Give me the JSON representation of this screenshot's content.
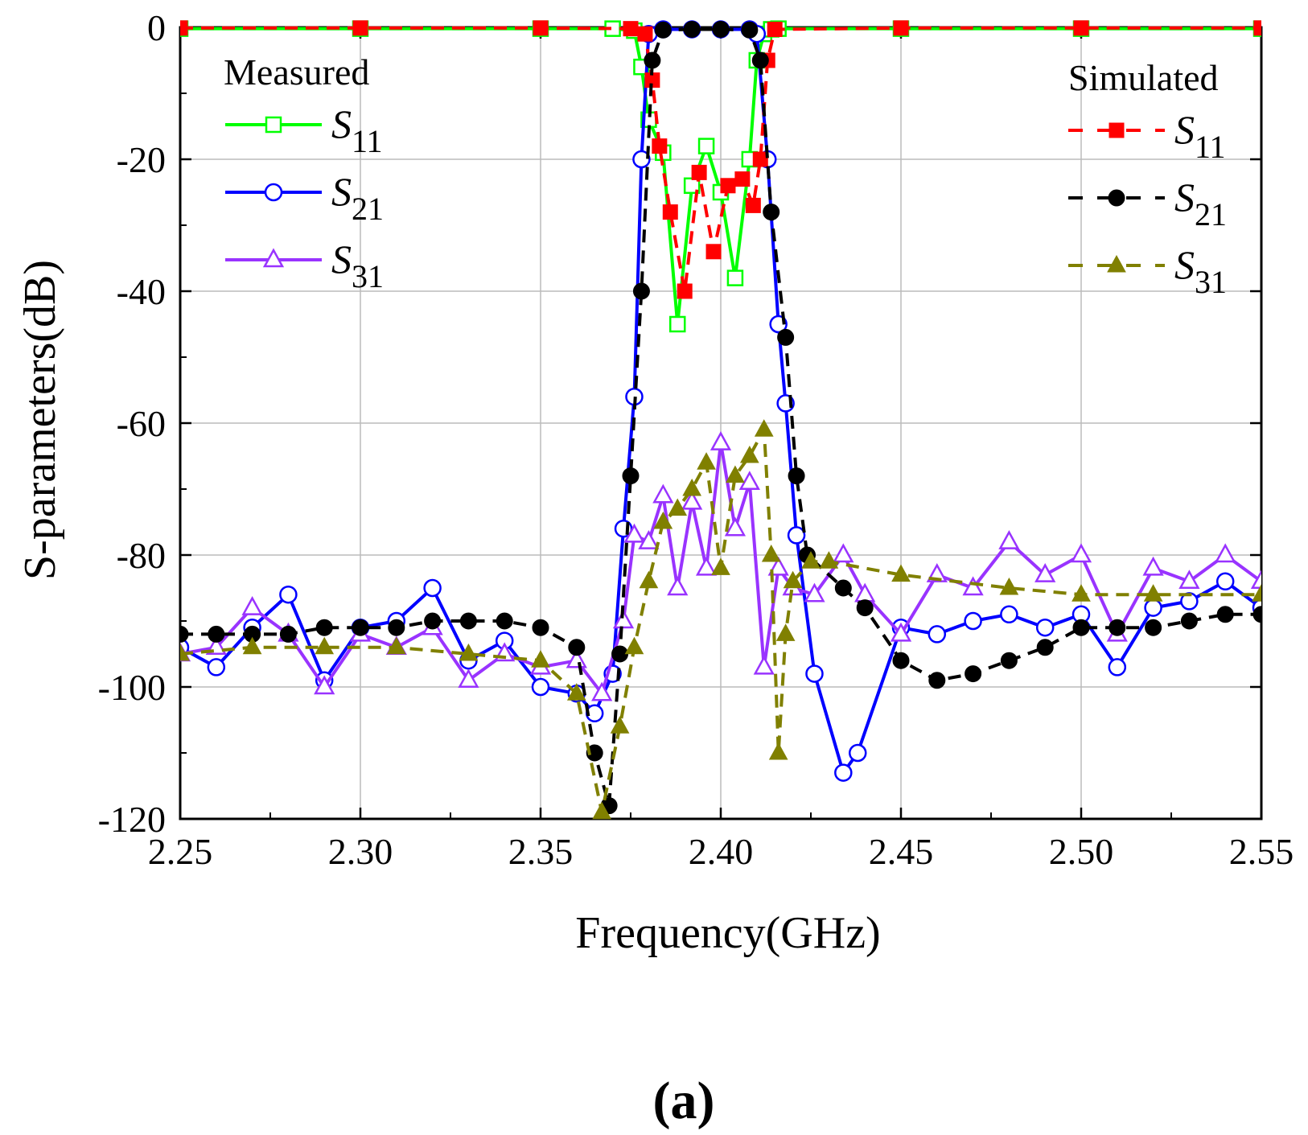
{
  "panel_label": "(a)",
  "chart_data": {
    "type": "line",
    "xlabel": "Frequency(GHz)",
    "ylabel": "S-parameters(dB)",
    "xlim": [
      2.25,
      2.55
    ],
    "ylim": [
      -120,
      0
    ],
    "x_ticks": [
      "2.25",
      "2.30",
      "2.35",
      "2.40",
      "2.45",
      "2.50",
      "2.55"
    ],
    "y_ticks": [
      "0",
      "-20",
      "-40",
      "-60",
      "-80",
      "-100",
      "-120"
    ],
    "grid": true,
    "legend_groups": [
      {
        "title": "Measured",
        "placement": "top-left"
      },
      {
        "title": "Simulated",
        "placement": "top-right"
      }
    ],
    "series": [
      {
        "name": "S11",
        "sub": "11",
        "group": "Measured",
        "color": "#00ff00",
        "dash": "solid",
        "marker": "square-open",
        "x": [
          2.25,
          2.3,
          2.35,
          2.37,
          2.376,
          2.378,
          2.38,
          2.384,
          2.388,
          2.392,
          2.396,
          2.4,
          2.404,
          2.408,
          2.41,
          2.412,
          2.414,
          2.416,
          2.45,
          2.5,
          2.55
        ],
        "y": [
          -0.2,
          -0.2,
          -0.2,
          -0.2,
          -0.5,
          -6,
          -14,
          -19,
          -45,
          -24,
          -18,
          -25,
          -38,
          -20,
          -5,
          -1,
          -0.3,
          -0.2,
          -0.2,
          -0.2,
          -0.2
        ]
      },
      {
        "name": "S21",
        "sub": "21",
        "group": "Measured",
        "color": "#0000ff",
        "dash": "solid",
        "marker": "circle-open",
        "x": [
          2.25,
          2.26,
          2.27,
          2.28,
          2.29,
          2.3,
          2.31,
          2.32,
          2.33,
          2.34,
          2.35,
          2.36,
          2.365,
          2.37,
          2.373,
          2.376,
          2.378,
          2.38,
          2.384,
          2.392,
          2.4,
          2.408,
          2.41,
          2.413,
          2.416,
          2.418,
          2.421,
          2.426,
          2.434,
          2.438,
          2.45,
          2.46,
          2.47,
          2.48,
          2.49,
          2.5,
          2.51,
          2.52,
          2.53,
          2.54,
          2.55
        ],
        "y": [
          -94,
          -97,
          -91,
          -86,
          -99,
          -91,
          -90,
          -85,
          -96,
          -93,
          -100,
          -101,
          -104,
          -98,
          -76,
          -56,
          -20,
          -1,
          -0.3,
          -0.3,
          -0.3,
          -0.3,
          -1,
          -20,
          -45,
          -57,
          -77,
          -98,
          -113,
          -110,
          -91,
          -92,
          -90,
          -89,
          -91,
          -89,
          -97,
          -88,
          -87,
          -84,
          -88
        ]
      },
      {
        "name": "S31",
        "sub": "31",
        "group": "Measured",
        "color": "#9933ff",
        "dash": "solid",
        "marker": "triangle-open",
        "x": [
          2.25,
          2.26,
          2.27,
          2.28,
          2.29,
          2.3,
          2.31,
          2.32,
          2.33,
          2.34,
          2.35,
          2.36,
          2.367,
          2.373,
          2.376,
          2.38,
          2.384,
          2.388,
          2.392,
          2.396,
          2.4,
          2.404,
          2.408,
          2.412,
          2.416,
          2.42,
          2.426,
          2.434,
          2.44,
          2.45,
          2.46,
          2.47,
          2.48,
          2.49,
          2.5,
          2.51,
          2.52,
          2.53,
          2.54,
          2.55
        ],
        "y": [
          -95,
          -94,
          -88,
          -92,
          -100,
          -92,
          -94,
          -91,
          -99,
          -95,
          -97,
          -96,
          -101,
          -90,
          -77,
          -78,
          -71,
          -85,
          -72,
          -82,
          -63,
          -76,
          -69,
          -97,
          -82,
          -85,
          -86,
          -80,
          -86,
          -92,
          -83,
          -85,
          -78,
          -83,
          -80,
          -92,
          -82,
          -84,
          -80,
          -84
        ]
      },
      {
        "name": "S11",
        "sub": "11",
        "group": "Simulated",
        "color": "#ff0000",
        "dash": "dashed",
        "marker": "square-filled",
        "x": [
          2.25,
          2.3,
          2.35,
          2.375,
          2.379,
          2.381,
          2.383,
          2.386,
          2.39,
          2.394,
          2.398,
          2.402,
          2.406,
          2.409,
          2.411,
          2.413,
          2.415,
          2.45,
          2.5,
          2.55
        ],
        "y": [
          -0.1,
          -0.1,
          -0.1,
          -0.2,
          -1,
          -8,
          -18,
          -28,
          -40,
          -22,
          -34,
          -24,
          -23,
          -27,
          -20,
          -5,
          -0.3,
          -0.1,
          -0.1,
          -0.1
        ]
      },
      {
        "name": "S21",
        "sub": "21",
        "group": "Simulated",
        "color": "#000000",
        "dash": "dashed",
        "marker": "circle-filled",
        "x": [
          2.25,
          2.26,
          2.27,
          2.28,
          2.29,
          2.3,
          2.31,
          2.32,
          2.33,
          2.34,
          2.35,
          2.36,
          2.365,
          2.369,
          2.372,
          2.375,
          2.378,
          2.381,
          2.384,
          2.392,
          2.4,
          2.408,
          2.411,
          2.414,
          2.418,
          2.421,
          2.424,
          2.434,
          2.44,
          2.45,
          2.46,
          2.47,
          2.48,
          2.49,
          2.5,
          2.51,
          2.52,
          2.53,
          2.54,
          2.55
        ],
        "y": [
          -92,
          -92,
          -92,
          -92,
          -91,
          -91,
          -91,
          -90,
          -90,
          -90,
          -91,
          -94,
          -110,
          -118,
          -95,
          -68,
          -40,
          -5,
          -0.4,
          -0.3,
          -0.3,
          -0.4,
          -5,
          -28,
          -47,
          -68,
          -80,
          -85,
          -88,
          -96,
          -99,
          -98,
          -96,
          -94,
          -91,
          -91,
          -91,
          -90,
          -89,
          -89
        ]
      },
      {
        "name": "S31",
        "sub": "31",
        "group": "Simulated",
        "color": "#808000",
        "dash": "dashed",
        "marker": "triangle-filled",
        "x": [
          2.25,
          2.27,
          2.29,
          2.31,
          2.33,
          2.35,
          2.36,
          2.367,
          2.372,
          2.376,
          2.38,
          2.384,
          2.388,
          2.392,
          2.396,
          2.4,
          2.404,
          2.408,
          2.412,
          2.414,
          2.416,
          2.418,
          2.42,
          2.425,
          2.43,
          2.45,
          2.48,
          2.5,
          2.52,
          2.55
        ],
        "y": [
          -95,
          -94,
          -94,
          -94,
          -95,
          -96,
          -101,
          -119,
          -106,
          -94,
          -84,
          -75,
          -73,
          -70,
          -66,
          -82,
          -68,
          -65,
          -61,
          -80,
          -110,
          -92,
          -84,
          -81,
          -81,
          -83,
          -85,
          -86,
          -86,
          -86
        ]
      }
    ]
  }
}
